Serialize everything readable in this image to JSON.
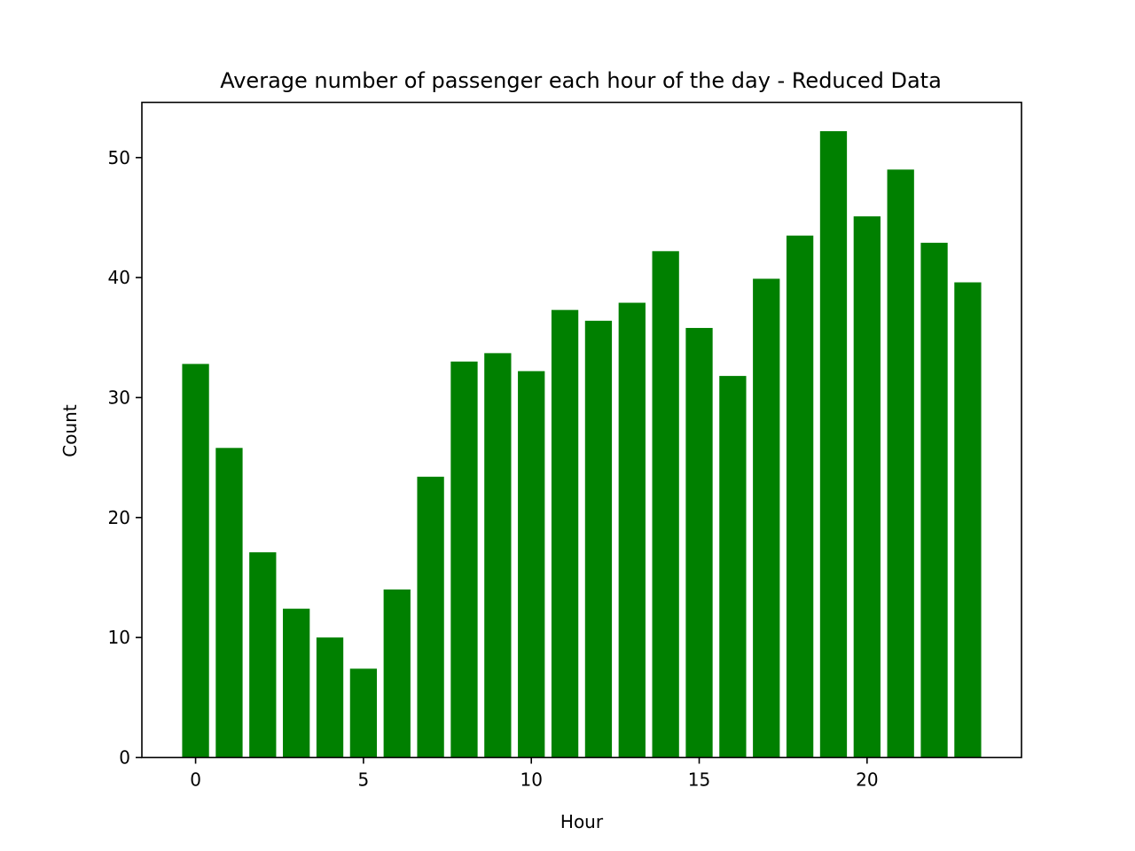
{
  "chart_data": {
    "type": "bar",
    "title": "Average number of passenger each hour of the day - Reduced Data",
    "xlabel": "Hour",
    "ylabel": "Count",
    "x": [
      0,
      1,
      2,
      3,
      4,
      5,
      6,
      7,
      8,
      9,
      10,
      11,
      12,
      13,
      14,
      15,
      16,
      17,
      18,
      19,
      20,
      21,
      22,
      23
    ],
    "values": [
      32.8,
      25.8,
      17.1,
      12.4,
      10.0,
      7.4,
      14.0,
      23.4,
      33.0,
      33.7,
      32.2,
      37.3,
      36.4,
      37.9,
      42.2,
      35.8,
      31.8,
      39.9,
      43.5,
      52.2,
      45.1,
      49.0,
      42.9,
      39.6
    ],
    "xlim": [
      -1.6,
      24.6
    ],
    "ylim": [
      0,
      54.6
    ],
    "xticks": [
      0,
      5,
      10,
      15,
      20
    ],
    "yticks": [
      0,
      10,
      20,
      30,
      40,
      50
    ],
    "bar_color": "#008000",
    "grid": false,
    "legend": "none"
  }
}
